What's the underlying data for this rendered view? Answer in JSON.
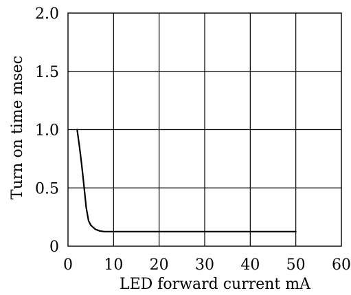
{
  "chart_data": {
    "type": "line",
    "title": "",
    "xlabel": "LED forward current mA",
    "ylabel": "Turn on time msec",
    "xlim": [
      0,
      60
    ],
    "ylim": [
      0,
      2.0
    ],
    "x_ticks": [
      0,
      10,
      20,
      30,
      40,
      50,
      60
    ],
    "x_tick_labels": [
      "0",
      "10",
      "20",
      "30",
      "40",
      "50",
      "60"
    ],
    "y_ticks": [
      0,
      0.5,
      1.0,
      1.5,
      2.0
    ],
    "y_tick_labels": [
      "0",
      "0.5",
      "1.0",
      "1.5",
      "2.0"
    ],
    "grid": true,
    "legend": "none",
    "series": [
      {
        "x": [
          2,
          2.5,
          3,
          3.5,
          4,
          4.5,
          5,
          6,
          7,
          8,
          10,
          20,
          30,
          40,
          50
        ],
        "y": [
          1.0,
          0.86,
          0.7,
          0.52,
          0.33,
          0.22,
          0.18,
          0.145,
          0.13,
          0.125,
          0.125,
          0.125,
          0.125,
          0.125,
          0.125
        ]
      }
    ]
  }
}
